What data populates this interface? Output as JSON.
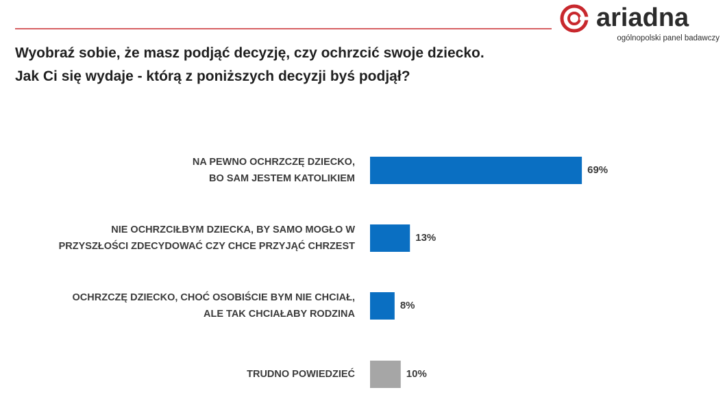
{
  "brand": {
    "name": "ariadna",
    "tagline": "ogólnopolski panel badawczy"
  },
  "chart_data": {
    "type": "hbar",
    "title": "Wyobraź sobie, że masz podjąć decyzję, czy ochrzcić swoje dziecko.\nJak Ci się wydaje - którą z poniższych decyzji byś podjął?",
    "categories": [
      "NA PEWNO OCHRZCZĘ DZIECKO,\nBO SAM  JESTEM KATOLIKIEM",
      "NIE OCHRZCIŁBYM DZIECKA, BY SAMO MOGŁO W\nPRZYSZŁOŚCI ZDECYDOWAĆ CZY CHCE PRZYJĄĆ CHRZEST",
      "OCHRZCZĘ DZIECKO, CHOĆ OSOBIŚCIE BYM NIE CHCIAŁ,\nALE TAK CHCIAŁABY RODZINA",
      "TRUDNO POWIEDZIEĆ"
    ],
    "values": [
      69,
      13,
      8,
      10
    ],
    "value_labels": [
      "69%",
      "13%",
      "8%",
      "10%"
    ],
    "colors": [
      "#0a6fc2",
      "#0a6fc2",
      "#0a6fc2",
      "#a6a6a6"
    ]
  }
}
